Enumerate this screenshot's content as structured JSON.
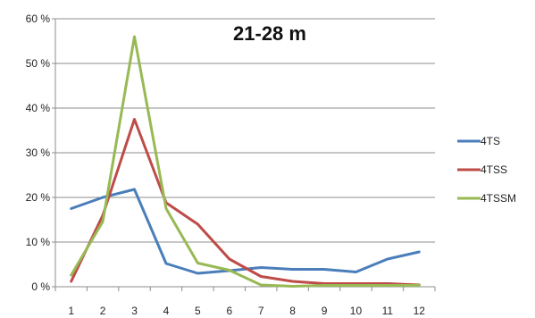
{
  "chart_data": {
    "type": "line",
    "title": "21-28 m",
    "x": [
      "1",
      "2",
      "3",
      "4",
      "5",
      "6",
      "7",
      "8",
      "9",
      "10",
      "11",
      "12"
    ],
    "ylim": [
      0,
      60
    ],
    "yticks": [
      0,
      10,
      20,
      30,
      40,
      50,
      60
    ],
    "ytick_format": "{v} %",
    "grid": true,
    "legend_position": "right",
    "series": [
      {
        "name": "4TS",
        "color": "#4a7ebb",
        "values": [
          17.5,
          20,
          21.8,
          5.2,
          3,
          3.6,
          4.3,
          3.9,
          3.9,
          3.3,
          6.2,
          7.8
        ]
      },
      {
        "name": "4TSS",
        "color": "#be4b48",
        "values": [
          1.2,
          16,
          37.5,
          18.8,
          14,
          6.2,
          2.3,
          1.2,
          0.7,
          0.7,
          0.7,
          0.4
        ]
      },
      {
        "name": "4TSSM",
        "color": "#98b954",
        "values": [
          2.6,
          14.6,
          56,
          17.5,
          5.3,
          3.7,
          0.4,
          0.1,
          0.3,
          0.3,
          0.3,
          0.3
        ]
      }
    ]
  }
}
